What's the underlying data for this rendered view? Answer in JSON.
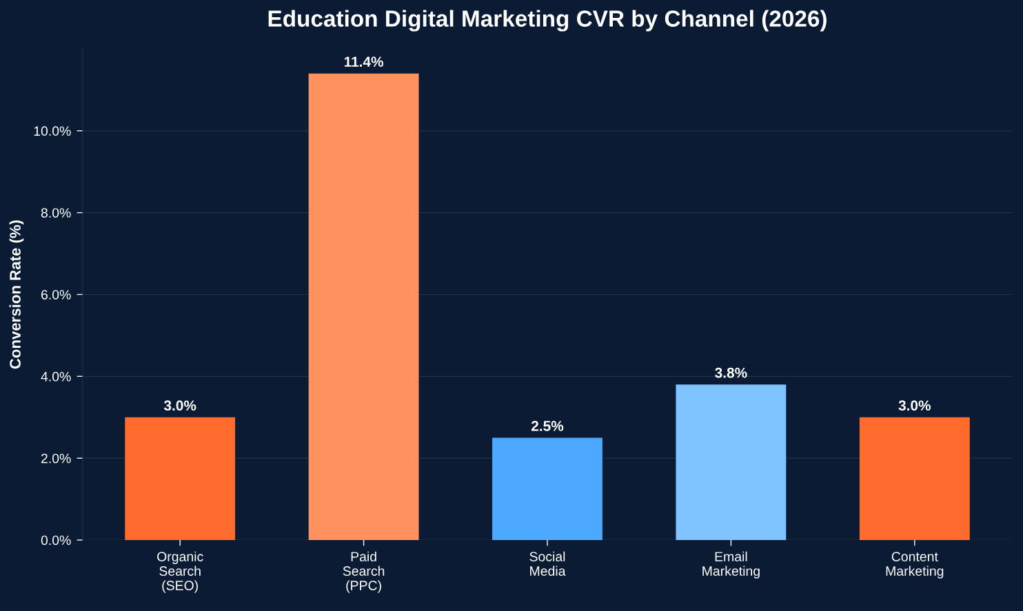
{
  "chart_data": {
    "type": "bar",
    "title": "Education Digital Marketing CVR by Channel (2026)",
    "ylabel": "Conversion Rate (%)",
    "categories": [
      "Organic\nSearch\n(SEO)",
      "Paid\nSearch\n(PPC)",
      "Social\nMedia",
      "Email\nMarketing",
      "Content\nMarketing"
    ],
    "values": [
      3.0,
      11.4,
      2.5,
      3.8,
      3.0
    ],
    "colors": [
      "#ff6b2c",
      "#ff915e",
      "#4ca9ff",
      "#80c4ff",
      "#ff6b2c"
    ],
    "value_labels": [
      "3.0%",
      "11.4%",
      "2.5%",
      "3.8%",
      "3.0%"
    ],
    "yticks": [
      {
        "value": 0,
        "label": "0.0%"
      },
      {
        "value": 2,
        "label": "2.0%"
      },
      {
        "value": 4,
        "label": "4.0%"
      },
      {
        "value": 6,
        "label": "6.0%"
      },
      {
        "value": 8,
        "label": "8.0%"
      },
      {
        "value": 10,
        "label": "10.0%"
      }
    ],
    "ylim": [
      0,
      12
    ],
    "grid": "y"
  }
}
